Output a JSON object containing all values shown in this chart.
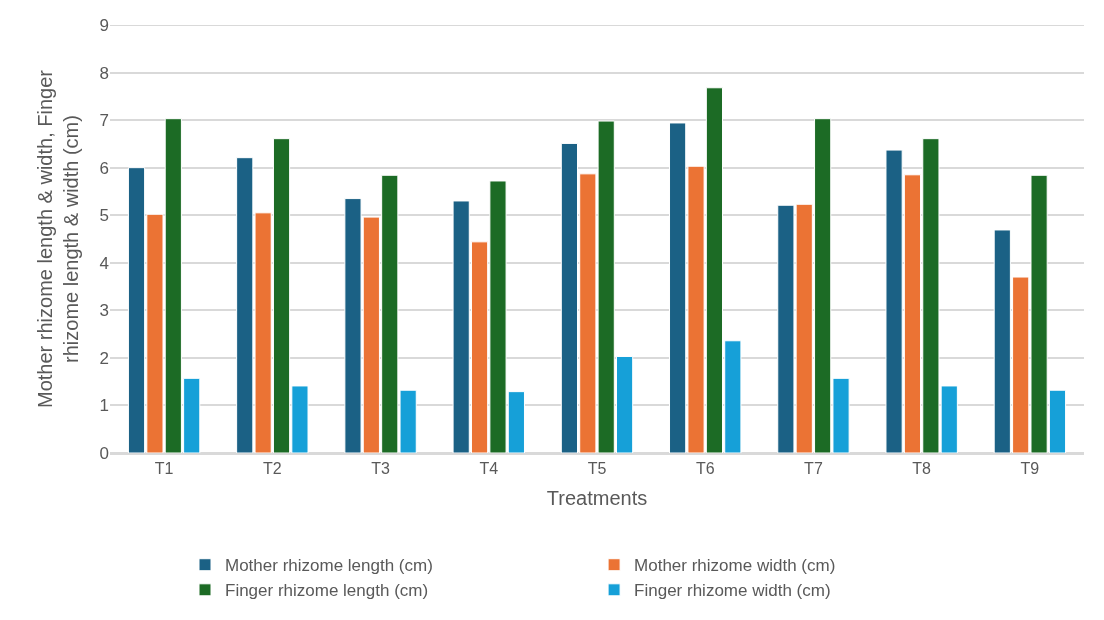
{
  "chart_data": {
    "type": "bar",
    "xlabel": "Treatments",
    "ylabel": "Mother rhizome length & width, Finger rhizome length & width (cm)",
    "categories": [
      "T1",
      "T2",
      "T3",
      "T4",
      "T5",
      "T6",
      "T7",
      "T8",
      "T9"
    ],
    "series": [
      {
        "name": "Mother rhizome length (cm)",
        "color": "#1b6185",
        "values": [
          6.0,
          6.21,
          5.35,
          5.3,
          6.51,
          6.94,
          5.21,
          6.37,
          4.69
        ]
      },
      {
        "name": "Mother rhizome width (cm)",
        "color": "#eb7334",
        "values": [
          5.02,
          5.05,
          4.96,
          4.44,
          5.87,
          6.03,
          5.23,
          5.85,
          3.7
        ]
      },
      {
        "name": "Finger rhizome length (cm)",
        "color": "#1c6b25",
        "values": [
          7.03,
          6.61,
          5.84,
          5.72,
          6.98,
          7.68,
          7.03,
          6.61,
          5.84
        ]
      },
      {
        "name": "Finger rhizome width (cm)",
        "color": "#16a0d8",
        "values": [
          1.57,
          1.41,
          1.32,
          1.29,
          2.03,
          2.36,
          1.57,
          1.41,
          1.32
        ]
      }
    ],
    "ylim": [
      0,
      9
    ],
    "yticks": [
      0,
      1,
      2,
      3,
      4,
      5,
      6,
      7,
      8,
      9
    ],
    "grid": "y",
    "legend": "bottom"
  }
}
